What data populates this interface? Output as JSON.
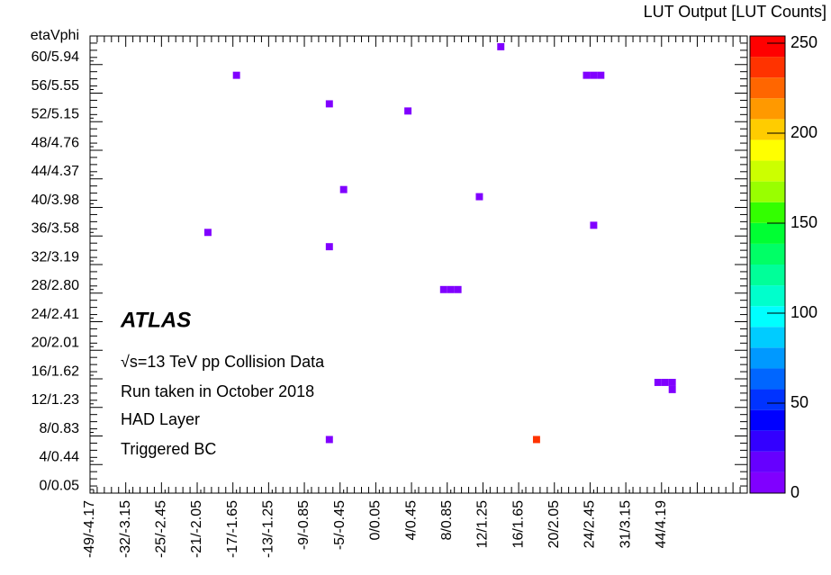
{
  "chart_data": {
    "type": "heatmap",
    "y_label": "etaVphi",
    "z_label": "LUT Output [LUT Counts]",
    "annotations": [
      "ATLAS",
      "√s=13 TeV pp Collision Data",
      "Run taken in October 2018",
      "HAD Layer",
      "Triggered BC"
    ],
    "xlim": [
      0,
      92
    ],
    "ylim": [
      0,
      64
    ],
    "zlim": [
      0,
      254
    ],
    "xticks": [
      {
        "value": 0.5,
        "label": "-49/-4.17"
      },
      {
        "value": 5.5,
        "label": "-32/-3.15"
      },
      {
        "value": 10.5,
        "label": "-25/-2.45"
      },
      {
        "value": 15.5,
        "label": "-21/-2.05"
      },
      {
        "value": 20.5,
        "label": "-17/-1.65"
      },
      {
        "value": 25.5,
        "label": "-13/-1.25"
      },
      {
        "value": 30.5,
        "label": "-9/-0.85"
      },
      {
        "value": 35.5,
        "label": "-5/-0.45"
      },
      {
        "value": 40.5,
        "label": "0/0.05"
      },
      {
        "value": 45.5,
        "label": "4/0.45"
      },
      {
        "value": 50.5,
        "label": "8/0.85"
      },
      {
        "value": 55.5,
        "label": "12/1.25"
      },
      {
        "value": 60.5,
        "label": "16/1.65"
      },
      {
        "value": 65.5,
        "label": "20/2.05"
      },
      {
        "value": 70.5,
        "label": "24/2.45"
      },
      {
        "value": 75.5,
        "label": "31/3.15"
      },
      {
        "value": 80.5,
        "label": "44/4.19"
      }
    ],
    "yticks": [
      {
        "value": 0.5,
        "label": "0/0.05"
      },
      {
        "value": 4.5,
        "label": "4/0.44"
      },
      {
        "value": 8.5,
        "label": "8/0.83"
      },
      {
        "value": 12.5,
        "label": "12/1.23"
      },
      {
        "value": 16.5,
        "label": "16/1.62"
      },
      {
        "value": 20.5,
        "label": "20/2.01"
      },
      {
        "value": 24.5,
        "label": "24/2.41"
      },
      {
        "value": 28.5,
        "label": "28/2.80"
      },
      {
        "value": 32.5,
        "label": "32/3.19"
      },
      {
        "value": 36.5,
        "label": "36/3.58"
      },
      {
        "value": 40.5,
        "label": "40/3.98"
      },
      {
        "value": 44.5,
        "label": "44/4.37"
      },
      {
        "value": 48.5,
        "label": "48/4.76"
      },
      {
        "value": 52.5,
        "label": "52/5.15"
      },
      {
        "value": 56.5,
        "label": "56/5.55"
      },
      {
        "value": 60.5,
        "label": "60/5.94"
      }
    ],
    "zticks": [
      0,
      50,
      100,
      150,
      200,
      250
    ],
    "palette": [
      "#8000ff",
      "#6600ff",
      "#3300ff",
      "#0000ff",
      "#0033ff",
      "#0066ff",
      "#0099ff",
      "#00ccff",
      "#00ffff",
      "#00ffcc",
      "#00ff99",
      "#00ff66",
      "#00ff33",
      "#33ff00",
      "#99ff00",
      "#ccff00",
      "#ffff00",
      "#ffcc00",
      "#ff9900",
      "#ff6600",
      "#ff3300",
      "#ff0000"
    ],
    "cells": {
      "x": [
        57,
        20,
        69,
        70,
        71,
        33,
        44,
        35,
        54,
        70,
        16,
        33,
        49,
        50,
        51,
        79,
        80,
        81,
        81,
        33,
        62
      ],
      "y": [
        62,
        58,
        58,
        58,
        58,
        54,
        53,
        42,
        41,
        37,
        36,
        34,
        28,
        28,
        28,
        15,
        15,
        15,
        14,
        7,
        7
      ],
      "values": [
        10,
        10,
        10,
        10,
        10,
        10,
        10,
        10,
        10,
        10,
        10,
        10,
        10,
        10,
        10,
        10,
        10,
        10,
        10,
        10,
        242
      ]
    }
  }
}
